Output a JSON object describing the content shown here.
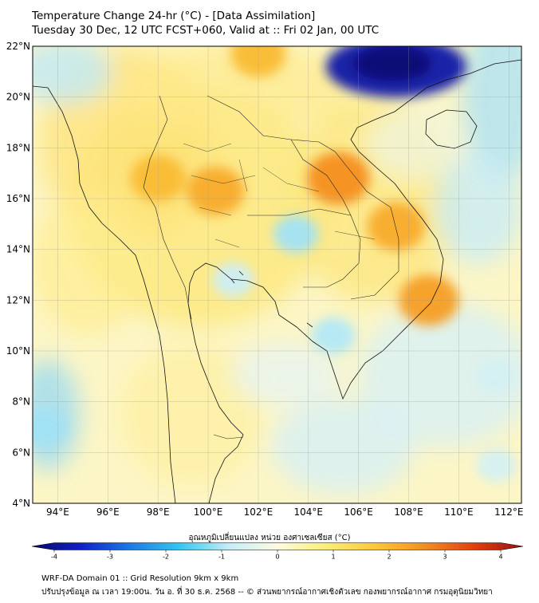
{
  "header": {
    "title": "Temperature Change 24-hr (°C) - [Data Assimilation]",
    "subtitle": "Tuesday 30 Dec, 12 UTC FCST+060, Valid at :: Fri 02 Jan, 00 UTC"
  },
  "map": {
    "lat_range": [
      4,
      22
    ],
    "lon_range": [
      93,
      112.5
    ],
    "lat_ticks": [
      "4°N",
      "6°N",
      "8°N",
      "10°N",
      "12°N",
      "14°N",
      "16°N",
      "18°N",
      "20°N",
      "22°N"
    ],
    "lon_ticks": [
      "94°E",
      "96°E",
      "98°E",
      "100°E",
      "102°E",
      "104°E",
      "106°E",
      "108°E",
      "110°E",
      "112°E"
    ],
    "grid": true,
    "features": [
      {
        "type": "warm",
        "lon": 105.2,
        "lat": 16.8,
        "value": 2.4
      },
      {
        "type": "warm",
        "lon": 100.3,
        "lat": 16.3,
        "value": 2.0
      },
      {
        "type": "warm",
        "lon": 98.0,
        "lat": 16.8,
        "value": 1.8
      },
      {
        "type": "warm",
        "lon": 108.8,
        "lat": 12.0,
        "value": 2.2
      },
      {
        "type": "warm",
        "lon": 107.5,
        "lat": 14.9,
        "value": 2.0
      },
      {
        "type": "warm",
        "lon": 102.0,
        "lat": 21.7,
        "value": 1.8
      },
      {
        "type": "cold",
        "lon": 107.5,
        "lat": 21.2,
        "value": -3.5
      },
      {
        "type": "cold",
        "lon": 103.5,
        "lat": 14.6,
        "value": -1.0
      },
      {
        "type": "cold",
        "lon": 101.0,
        "lat": 12.8,
        "value": -0.7
      },
      {
        "type": "cold",
        "lon": 105.0,
        "lat": 10.6,
        "value": -0.9
      },
      {
        "type": "cold",
        "lon": 93.5,
        "lat": 7.0,
        "value": -1.0
      },
      {
        "type": "cold",
        "lon": 111.5,
        "lat": 9.0,
        "value": -0.6
      },
      {
        "type": "cold",
        "lon": 111.5,
        "lat": 5.5,
        "value": -0.6
      }
    ]
  },
  "colorbar": {
    "label": "อุณหภูมิเปลี่ยนแปลง หน่วย องศาเซลเซียส (°C)",
    "range": [
      -4,
      4
    ],
    "ticks": [
      -4,
      -3,
      -2,
      -1,
      0,
      1,
      2,
      3,
      4
    ],
    "colors": [
      "#08086b",
      "#1020c8",
      "#1e78e8",
      "#30c8ee",
      "#c6ecf8",
      "#fdfbe0",
      "#fbee78",
      "#fbc838",
      "#f48e1e",
      "#e24010",
      "#9b0f0f"
    ]
  },
  "footer": {
    "line1": "WRF-DA Domain 01 :: Grid Resolution 9km x 9km",
    "line2": "ปรับปรุงข้อมูล ณ เวลา 19:00น. วัน อ. ที่ 30 ธ.ค. 2568 -- © ส่วนพยากรณ์อากาศเชิงตัวเลข กองพยากรณ์อากาศ กรมอุตุนิยมวิทยา"
  }
}
